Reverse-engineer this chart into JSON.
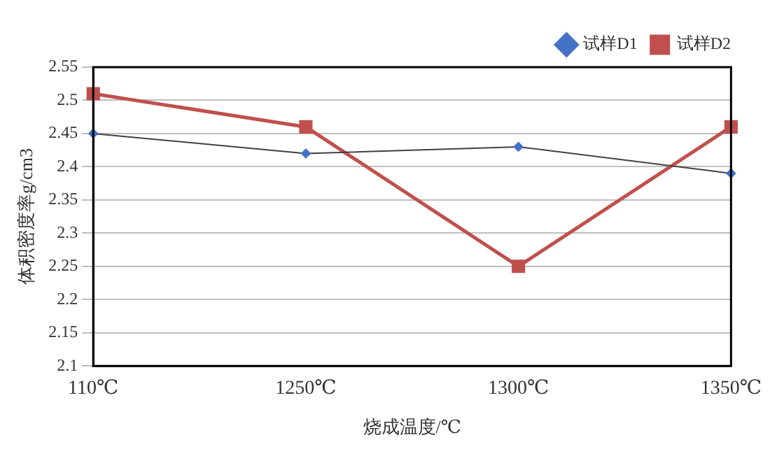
{
  "chart_data": {
    "type": "line",
    "xlabel": "烧成温度/℃",
    "ylabel": "体积密度率g/cm3",
    "categories": [
      "110℃",
      "1250℃",
      "1300℃",
      "1350℃"
    ],
    "series": [
      {
        "name": "试样D1",
        "color": "#4472c4",
        "values": [
          2.45,
          2.42,
          2.43,
          2.39
        ],
        "marker": "diamond"
      },
      {
        "name": "试样D2",
        "color": "#c0504d",
        "values": [
          2.51,
          2.46,
          2.25,
          2.46
        ],
        "marker": "square"
      }
    ],
    "ylim": [
      2.1,
      2.55
    ],
    "yticks": [
      2.1,
      2.15,
      2.2,
      2.25,
      2.3,
      2.35,
      2.4,
      2.45,
      2.5,
      2.55
    ],
    "grid": "y",
    "legend": "top right"
  }
}
